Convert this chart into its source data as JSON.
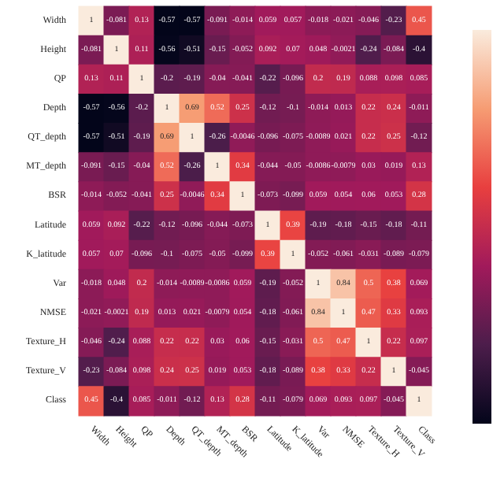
{
  "chart_data": {
    "type": "heatmap",
    "categories": [
      "Width",
      "Height",
      "QP",
      "Depth",
      "QT_depth",
      "MT_depth",
      "BSR",
      "Latitude",
      "K_latitude",
      "Var",
      "NMSE",
      "Texture_H",
      "Texture_V",
      "Class"
    ],
    "y_categories": [
      "Width",
      "Height",
      "QP",
      "Depth",
      "QT_depth",
      "MT_depth",
      "BSR",
      "Latitude",
      "K_latitude",
      "Var",
      "NMSE",
      "Texture_H",
      "Texture_V",
      "Class"
    ],
    "cells": [
      [
        1,
        -0.081,
        0.13,
        -0.57,
        -0.57,
        -0.091,
        -0.014,
        0.059,
        0.057,
        -0.018,
        -0.021,
        -0.046,
        -0.23,
        0.45
      ],
      [
        -0.081,
        1,
        0.11,
        -0.56,
        -0.51,
        -0.15,
        -0.052,
        0.092,
        0.07,
        0.048,
        -0.0021,
        -0.24,
        -0.084,
        -0.4
      ],
      [
        0.13,
        0.11,
        1,
        -0.2,
        -0.19,
        -0.04,
        -0.041,
        -0.22,
        -0.096,
        0.2,
        0.19,
        0.088,
        0.098,
        0.085
      ],
      [
        -0.57,
        -0.56,
        -0.2,
        1,
        0.69,
        0.52,
        0.25,
        -0.12,
        -0.1,
        -0.014,
        0.013,
        0.22,
        0.24,
        -0.011
      ],
      [
        -0.57,
        -0.51,
        -0.19,
        0.69,
        1,
        -0.26,
        -0.0046,
        -0.096,
        -0.075,
        -0.0089,
        0.021,
        0.22,
        0.25,
        -0.12
      ],
      [
        -0.091,
        -0.15,
        -0.04,
        0.52,
        -0.26,
        1,
        0.34,
        -0.044,
        -0.05,
        -0.0086,
        -0.0079,
        0.03,
        0.019,
        0.13
      ],
      [
        -0.014,
        -0.052,
        -0.041,
        0.25,
        -0.0046,
        0.34,
        1,
        -0.073,
        -0.099,
        0.059,
        0.054,
        0.06,
        0.053,
        0.28
      ],
      [
        0.059,
        0.092,
        -0.22,
        -0.12,
        -0.096,
        -0.044,
        -0.073,
        1,
        0.39,
        -0.19,
        -0.18,
        -0.15,
        -0.18,
        -0.11
      ],
      [
        0.057,
        0.07,
        -0.096,
        -0.1,
        -0.075,
        -0.05,
        -0.099,
        0.39,
        1,
        -0.052,
        -0.061,
        -0.031,
        -0.089,
        -0.079
      ],
      [
        -0.018,
        0.048,
        0.2,
        -0.014,
        -0.0089,
        -0.0086,
        0.059,
        -0.19,
        -0.052,
        1,
        0.84,
        0.5,
        0.38,
        0.069
      ],
      [
        -0.021,
        -0.0021,
        0.19,
        0.013,
        0.021,
        -0.0079,
        0.054,
        -0.18,
        -0.061,
        0.84,
        1,
        0.47,
        0.33,
        0.093
      ],
      [
        -0.046,
        -0.24,
        0.088,
        0.22,
        0.22,
        0.03,
        0.06,
        -0.15,
        -0.031,
        0.5,
        0.47,
        1,
        0.22,
        0.097
      ],
      [
        -0.23,
        -0.084,
        0.098,
        0.24,
        0.25,
        0.019,
        0.053,
        -0.18,
        -0.089,
        0.38,
        0.33,
        0.22,
        1,
        -0.045
      ],
      [
        0.45,
        -0.4,
        0.085,
        -0.011,
        -0.12,
        0.13,
        0.28,
        -0.11,
        -0.079,
        0.069,
        0.093,
        0.097,
        -0.045,
        1
      ]
    ],
    "data_labels": true
  }
}
